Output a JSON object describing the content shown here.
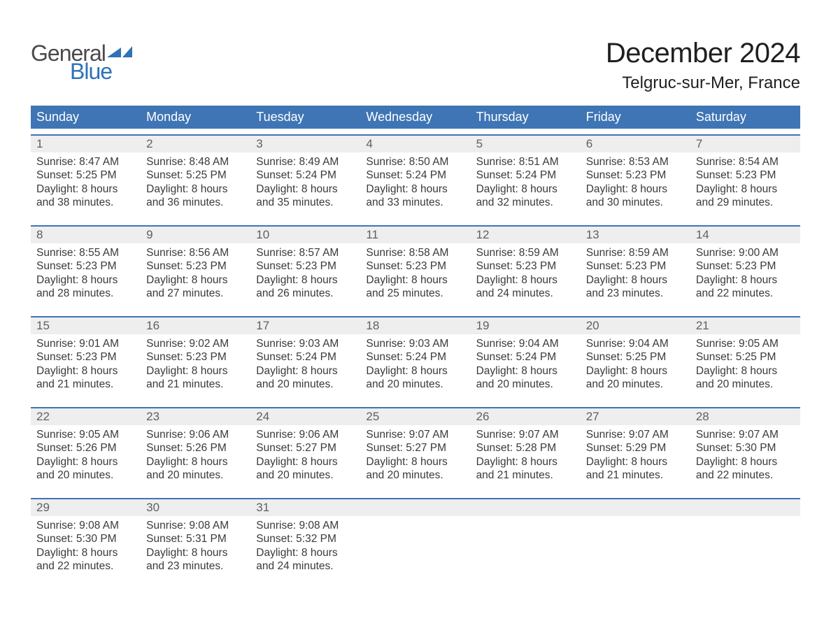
{
  "logo": {
    "word_general": "General",
    "word_blue": "Blue",
    "mark_color": "#2f72b6"
  },
  "title": {
    "month_year": "December 2024",
    "location": "Telgruc-sur-Mer, France"
  },
  "layout": {
    "header_bg": "#3f75b4",
    "header_text": "#ffffff",
    "daynum_bg": "#eeeeee",
    "daynum_text": "#606060",
    "week_separator": "#3f75b4",
    "body_text": "#3a3a3a",
    "title_fontsize": 40,
    "location_fontsize": 24,
    "dow_fontsize": 18,
    "cell_fontsize": 15.5
  },
  "days_of_week": [
    "Sunday",
    "Monday",
    "Tuesday",
    "Wednesday",
    "Thursday",
    "Friday",
    "Saturday"
  ],
  "weeks": [
    [
      {
        "n": "1",
        "sunrise": "8:47 AM",
        "sunset": "5:25 PM",
        "daylight": "8 hours and 38 minutes."
      },
      {
        "n": "2",
        "sunrise": "8:48 AM",
        "sunset": "5:25 PM",
        "daylight": "8 hours and 36 minutes."
      },
      {
        "n": "3",
        "sunrise": "8:49 AM",
        "sunset": "5:24 PM",
        "daylight": "8 hours and 35 minutes."
      },
      {
        "n": "4",
        "sunrise": "8:50 AM",
        "sunset": "5:24 PM",
        "daylight": "8 hours and 33 minutes."
      },
      {
        "n": "5",
        "sunrise": "8:51 AM",
        "sunset": "5:24 PM",
        "daylight": "8 hours and 32 minutes."
      },
      {
        "n": "6",
        "sunrise": "8:53 AM",
        "sunset": "5:23 PM",
        "daylight": "8 hours and 30 minutes."
      },
      {
        "n": "7",
        "sunrise": "8:54 AM",
        "sunset": "5:23 PM",
        "daylight": "8 hours and 29 minutes."
      }
    ],
    [
      {
        "n": "8",
        "sunrise": "8:55 AM",
        "sunset": "5:23 PM",
        "daylight": "8 hours and 28 minutes."
      },
      {
        "n": "9",
        "sunrise": "8:56 AM",
        "sunset": "5:23 PM",
        "daylight": "8 hours and 27 minutes."
      },
      {
        "n": "10",
        "sunrise": "8:57 AM",
        "sunset": "5:23 PM",
        "daylight": "8 hours and 26 minutes."
      },
      {
        "n": "11",
        "sunrise": "8:58 AM",
        "sunset": "5:23 PM",
        "daylight": "8 hours and 25 minutes."
      },
      {
        "n": "12",
        "sunrise": "8:59 AM",
        "sunset": "5:23 PM",
        "daylight": "8 hours and 24 minutes."
      },
      {
        "n": "13",
        "sunrise": "8:59 AM",
        "sunset": "5:23 PM",
        "daylight": "8 hours and 23 minutes."
      },
      {
        "n": "14",
        "sunrise": "9:00 AM",
        "sunset": "5:23 PM",
        "daylight": "8 hours and 22 minutes."
      }
    ],
    [
      {
        "n": "15",
        "sunrise": "9:01 AM",
        "sunset": "5:23 PM",
        "daylight": "8 hours and 21 minutes."
      },
      {
        "n": "16",
        "sunrise": "9:02 AM",
        "sunset": "5:23 PM",
        "daylight": "8 hours and 21 minutes."
      },
      {
        "n": "17",
        "sunrise": "9:03 AM",
        "sunset": "5:24 PM",
        "daylight": "8 hours and 20 minutes."
      },
      {
        "n": "18",
        "sunrise": "9:03 AM",
        "sunset": "5:24 PM",
        "daylight": "8 hours and 20 minutes."
      },
      {
        "n": "19",
        "sunrise": "9:04 AM",
        "sunset": "5:24 PM",
        "daylight": "8 hours and 20 minutes."
      },
      {
        "n": "20",
        "sunrise": "9:04 AM",
        "sunset": "5:25 PM",
        "daylight": "8 hours and 20 minutes."
      },
      {
        "n": "21",
        "sunrise": "9:05 AM",
        "sunset": "5:25 PM",
        "daylight": "8 hours and 20 minutes."
      }
    ],
    [
      {
        "n": "22",
        "sunrise": "9:05 AM",
        "sunset": "5:26 PM",
        "daylight": "8 hours and 20 minutes."
      },
      {
        "n": "23",
        "sunrise": "9:06 AM",
        "sunset": "5:26 PM",
        "daylight": "8 hours and 20 minutes."
      },
      {
        "n": "24",
        "sunrise": "9:06 AM",
        "sunset": "5:27 PM",
        "daylight": "8 hours and 20 minutes."
      },
      {
        "n": "25",
        "sunrise": "9:07 AM",
        "sunset": "5:27 PM",
        "daylight": "8 hours and 20 minutes."
      },
      {
        "n": "26",
        "sunrise": "9:07 AM",
        "sunset": "5:28 PM",
        "daylight": "8 hours and 21 minutes."
      },
      {
        "n": "27",
        "sunrise": "9:07 AM",
        "sunset": "5:29 PM",
        "daylight": "8 hours and 21 minutes."
      },
      {
        "n": "28",
        "sunrise": "9:07 AM",
        "sunset": "5:30 PM",
        "daylight": "8 hours and 22 minutes."
      }
    ],
    [
      {
        "n": "29",
        "sunrise": "9:08 AM",
        "sunset": "5:30 PM",
        "daylight": "8 hours and 22 minutes."
      },
      {
        "n": "30",
        "sunrise": "9:08 AM",
        "sunset": "5:31 PM",
        "daylight": "8 hours and 23 minutes."
      },
      {
        "n": "31",
        "sunrise": "9:08 AM",
        "sunset": "5:32 PM",
        "daylight": "8 hours and 24 minutes."
      },
      null,
      null,
      null,
      null
    ]
  ],
  "labels": {
    "sunrise": "Sunrise: ",
    "sunset": "Sunset: ",
    "daylight": "Daylight: "
  }
}
